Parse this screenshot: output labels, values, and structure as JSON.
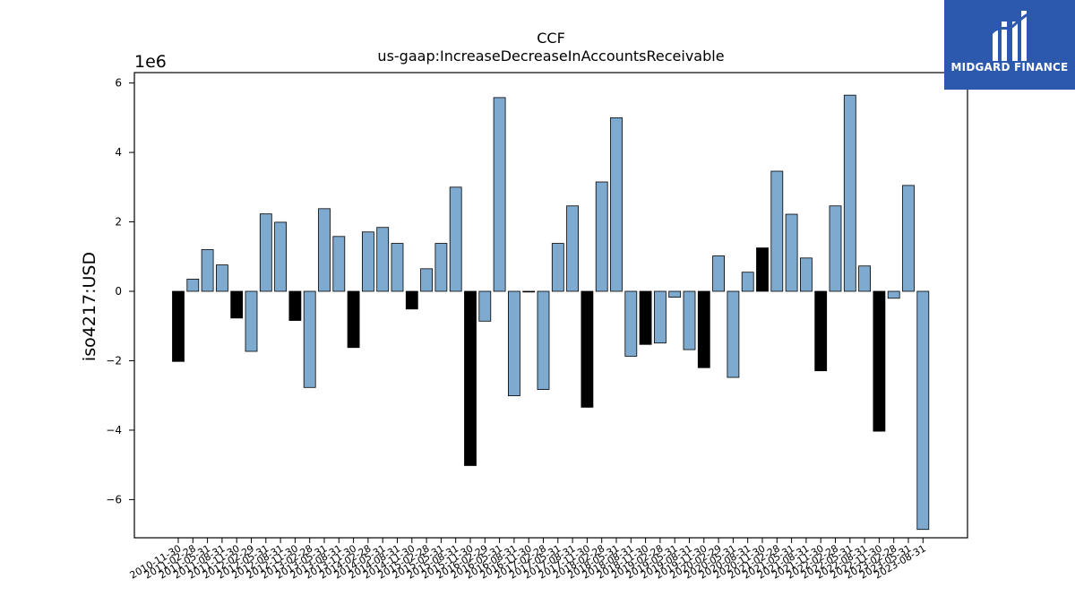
{
  "brand": {
    "name": "MIDGARD FINANCE",
    "bg_color": "#2c59ad"
  },
  "chart_data": {
    "type": "bar",
    "title": "CCF",
    "subtitle": "us-gaap:IncreaseDecreaseInAccountsReceivable",
    "ylabel": "iso4217:USD",
    "xlabel": "",
    "y_scale_label": "1e6",
    "ylim": [
      -7.1,
      6.3
    ],
    "y_ticks": [
      -6,
      -4,
      -2,
      0,
      2,
      4,
      6
    ],
    "grid": false,
    "colors": {
      "default": "#7eaacf",
      "highlight": "#000000",
      "edge": "#000000"
    },
    "categories": [
      "2010-11-30",
      "2011-02-28",
      "2011-05-31",
      "2011-08-31",
      "2011-11-30",
      "2012-02-29",
      "2012-05-31",
      "2012-08-31",
      "2012-11-30",
      "2013-02-28",
      "2013-05-31",
      "2013-08-31",
      "2013-11-30",
      "2014-02-28",
      "2014-05-31",
      "2014-08-31",
      "2014-11-30",
      "2015-02-28",
      "2015-05-31",
      "2015-08-31",
      "2015-11-30",
      "2016-02-29",
      "2016-05-31",
      "2016-08-31",
      "2016-11-30",
      "2017-02-28",
      "2017-05-31",
      "2017-08-31",
      "2017-11-30",
      "2018-02-28",
      "2018-05-31",
      "2018-08-31",
      "2018-11-30",
      "2019-02-28",
      "2019-05-31",
      "2019-08-31",
      "2019-11-30",
      "2020-02-29",
      "2020-05-31",
      "2020-08-31",
      "2020-11-30",
      "2021-02-28",
      "2021-05-31",
      "2021-08-31",
      "2021-11-30",
      "2022-02-28",
      "2022-05-31",
      "2022-08-31",
      "2022-11-30",
      "2023-02-28",
      "2023-05-31",
      "2023-08-31"
    ],
    "values": [
      -2.02,
      0.35,
      1.2,
      0.76,
      -0.77,
      -1.73,
      2.23,
      1.99,
      -0.84,
      -2.77,
      2.38,
      1.58,
      -1.62,
      1.71,
      1.84,
      1.38,
      -0.51,
      0.65,
      1.38,
      3.0,
      -5.02,
      -0.86,
      5.58,
      -3.01,
      0.0,
      -2.83,
      1.38,
      2.46,
      -3.34,
      3.15,
      5.0,
      -1.87,
      -1.53,
      -1.49,
      -0.17,
      -1.68,
      -2.2,
      1.02,
      -2.48,
      0.55,
      1.25,
      3.46,
      2.22,
      0.96,
      -2.29,
      2.46,
      5.65,
      0.73,
      -4.03,
      -0.2,
      3.05,
      -6.86
    ],
    "highlight": [
      true,
      false,
      false,
      false,
      true,
      false,
      false,
      false,
      true,
      false,
      false,
      false,
      true,
      false,
      false,
      false,
      true,
      false,
      false,
      false,
      true,
      false,
      false,
      false,
      false,
      false,
      false,
      false,
      true,
      false,
      false,
      false,
      true,
      false,
      false,
      false,
      true,
      false,
      false,
      false,
      true,
      false,
      false,
      false,
      true,
      false,
      false,
      false,
      true,
      false,
      false,
      false
    ]
  }
}
